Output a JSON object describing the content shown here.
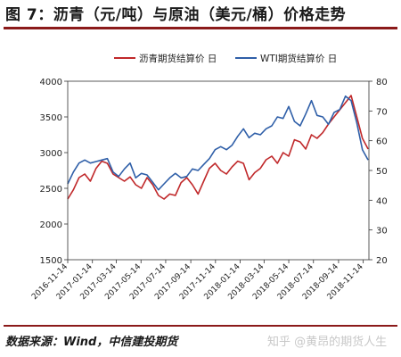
{
  "title": "图 7：沥青（元/吨）与原油（美元/桶）价格走势",
  "source": "数据来源：Wind，中信建投期货",
  "watermark": "知乎 @黄昂的期货人生",
  "colors": {
    "asphalt": "#c0282a",
    "wti": "#2f5fa8",
    "title_rule": "#8b1a1a"
  },
  "chart_data": {
    "type": "line",
    "x_ticks": [
      "2016-11-14",
      "2017-01-14",
      "2017-03-14",
      "2017-05-14",
      "2017-07-14",
      "2017-09-14",
      "2017-11-14",
      "2018-01-14",
      "2018-03-14",
      "2018-05-14",
      "2018-07-14",
      "2018-09-14",
      "2018-11-14"
    ],
    "y_left": {
      "min": 1500,
      "max": 4000,
      "ticks": [
        1500,
        2000,
        2500,
        3000,
        3500,
        4000
      ]
    },
    "y_right": {
      "min": 20,
      "max": 80,
      "ticks": [
        20,
        30,
        40,
        50,
        60,
        70,
        80
      ]
    },
    "grid": false,
    "legend_position": "top",
    "series": [
      {
        "name": "沥青期货结算价 日",
        "axis": "left",
        "x": [
          "2016-11-14",
          "2016-11-28",
          "2016-12-12",
          "2016-12-26",
          "2017-01-09",
          "2017-01-23",
          "2017-02-06",
          "2017-02-20",
          "2017-03-06",
          "2017-03-20",
          "2017-04-03",
          "2017-04-17",
          "2017-05-01",
          "2017-05-15",
          "2017-05-29",
          "2017-06-12",
          "2017-06-26",
          "2017-07-10",
          "2017-07-24",
          "2017-08-07",
          "2017-08-21",
          "2017-09-04",
          "2017-09-18",
          "2017-10-02",
          "2017-10-16",
          "2017-10-30",
          "2017-11-13",
          "2017-11-27",
          "2017-12-11",
          "2017-12-25",
          "2018-01-08",
          "2018-01-22",
          "2018-02-05",
          "2018-02-19",
          "2018-03-05",
          "2018-03-19",
          "2018-04-02",
          "2018-04-16",
          "2018-04-30",
          "2018-05-14",
          "2018-05-28",
          "2018-06-11",
          "2018-06-25",
          "2018-07-09",
          "2018-07-23",
          "2018-08-06",
          "2018-08-20",
          "2018-09-03",
          "2018-09-17",
          "2018-10-01",
          "2018-10-15",
          "2018-10-29",
          "2018-11-12",
          "2018-11-26"
        ],
        "values": [
          2350,
          2480,
          2650,
          2700,
          2600,
          2780,
          2880,
          2850,
          2700,
          2650,
          2600,
          2660,
          2550,
          2500,
          2650,
          2550,
          2400,
          2350,
          2420,
          2400,
          2580,
          2650,
          2550,
          2420,
          2600,
          2780,
          2850,
          2750,
          2700,
          2800,
          2880,
          2850,
          2620,
          2720,
          2780,
          2900,
          2950,
          2850,
          3000,
          2950,
          3180,
          3150,
          3050,
          3250,
          3200,
          3280,
          3400,
          3500,
          3600,
          3700,
          3800,
          3500,
          3200,
          3050
        ]
      },
      {
        "name": "WTI期货结算价 日",
        "axis": "right",
        "x": [
          "2016-11-14",
          "2016-11-28",
          "2016-12-12",
          "2016-12-26",
          "2017-01-09",
          "2017-01-23",
          "2017-02-06",
          "2017-02-20",
          "2017-03-06",
          "2017-03-20",
          "2017-04-03",
          "2017-04-17",
          "2017-05-01",
          "2017-05-15",
          "2017-05-29",
          "2017-06-12",
          "2017-06-26",
          "2017-07-10",
          "2017-07-24",
          "2017-08-07",
          "2017-08-21",
          "2017-09-04",
          "2017-09-18",
          "2017-10-02",
          "2017-10-16",
          "2017-10-30",
          "2017-11-13",
          "2017-11-27",
          "2017-12-11",
          "2017-12-25",
          "2018-01-08",
          "2018-01-22",
          "2018-02-05",
          "2018-02-19",
          "2018-03-05",
          "2018-03-19",
          "2018-04-02",
          "2018-04-16",
          "2018-04-30",
          "2018-05-14",
          "2018-05-28",
          "2018-06-11",
          "2018-06-25",
          "2018-07-09",
          "2018-07-23",
          "2018-08-06",
          "2018-08-20",
          "2018-09-03",
          "2018-09-17",
          "2018-10-01",
          "2018-10-15",
          "2018-10-29",
          "2018-11-12",
          "2018-11-26"
        ],
        "values": [
          45.5,
          49.5,
          52.5,
          53.5,
          52.5,
          53.0,
          53.5,
          54.0,
          49.5,
          48.0,
          50.5,
          52.5,
          47.5,
          49.0,
          48.5,
          46.0,
          43.5,
          45.5,
          47.5,
          49.0,
          47.5,
          48.0,
          50.5,
          50.0,
          52.0,
          54.0,
          57.0,
          58.0,
          57.0,
          58.5,
          61.5,
          64.0,
          61.0,
          62.5,
          62.0,
          64.0,
          65.0,
          68.0,
          67.5,
          71.5,
          66.5,
          65.0,
          69.0,
          73.5,
          68.5,
          68.0,
          65.5,
          69.5,
          70.5,
          75.0,
          73.5,
          66.0,
          57.0,
          53.5
        ]
      }
    ]
  }
}
